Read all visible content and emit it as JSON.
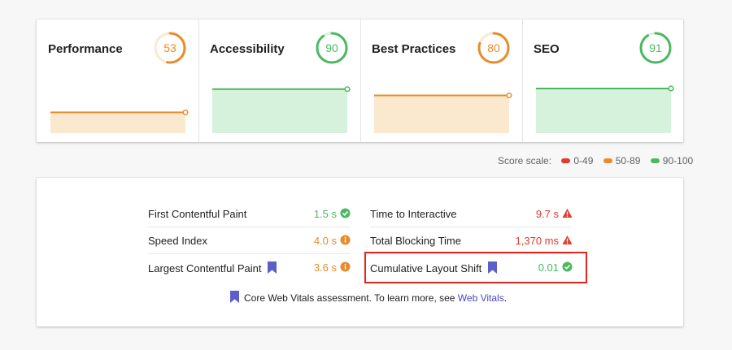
{
  "categories": [
    {
      "name": "Performance",
      "score": "53",
      "color": "#e88c2b",
      "fill": "#fbe9cf"
    },
    {
      "name": "Accessibility",
      "score": "90",
      "color": "#4cb861",
      "fill": "#d6f1dc"
    },
    {
      "name": "Best Practices",
      "score": "80",
      "color": "#e88c2b",
      "fill": "#fbe9cf"
    },
    {
      "name": "SEO",
      "score": "91",
      "color": "#4cb861",
      "fill": "#d6f1dc"
    }
  ],
  "scale": {
    "label": "Score scale:",
    "ranges": [
      {
        "label": "0-49",
        "color": "#e13a2e"
      },
      {
        "label": "50-89",
        "color": "#e88c2b"
      },
      {
        "label": "90-100",
        "color": "#4cb861"
      }
    ]
  },
  "metrics": {
    "left": [
      {
        "label": "First Contentful Paint",
        "value": "1.5 s",
        "status": "pass",
        "cwv": false
      },
      {
        "label": "Speed Index",
        "value": "4.0 s",
        "status": "average",
        "cwv": false
      },
      {
        "label": "Largest Contentful Paint",
        "value": "3.6 s",
        "status": "average",
        "cwv": true
      }
    ],
    "right": [
      {
        "label": "Time to Interactive",
        "value": "9.7 s",
        "status": "fail",
        "cwv": false
      },
      {
        "label": "Total Blocking Time",
        "value": "1,370 ms",
        "status": "fail",
        "cwv": false
      },
      {
        "label": "Cumulative Layout Shift",
        "value": "0.01",
        "status": "pass",
        "cwv": true
      }
    ]
  },
  "note": {
    "text": "Core Web Vitals assessment. To learn more, see",
    "link": "Web Vitals",
    "suffix": "."
  },
  "colors": {
    "pass": "#4cb861",
    "average": "#e88c2b",
    "fail": "#e13a2e",
    "bookmark": "#5b5fc7"
  }
}
